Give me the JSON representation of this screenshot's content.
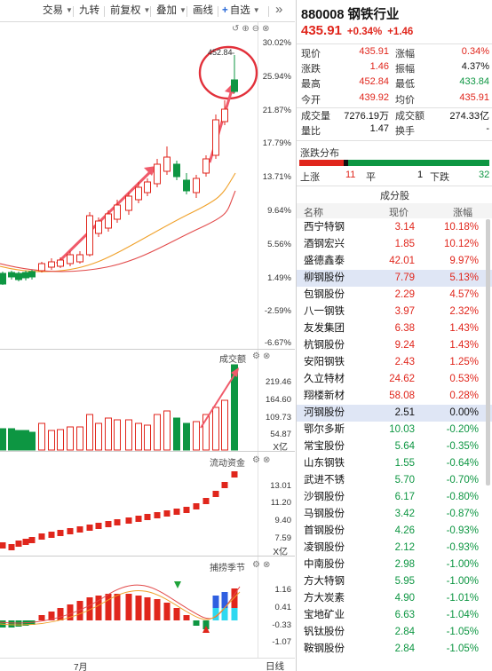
{
  "toolbar": {
    "items": [
      "交易",
      "九转",
      "前复权",
      "叠加",
      "画线",
      "自选"
    ],
    "more": "»"
  },
  "kline": {
    "axis": [
      "30.02%",
      "25.94%",
      "21.87%",
      "17.79%",
      "13.71%",
      "9.64%",
      "5.56%",
      "1.49%",
      "-2.59%",
      "-6.67%"
    ],
    "high_label": "452.84"
  },
  "volume": {
    "title": "成交额",
    "axis": [
      "219.46",
      "164.60",
      "109.73",
      "54.87"
    ],
    "unit": "X亿"
  },
  "flow": {
    "title": "流动资金",
    "axis": [
      "13.01",
      "11.20",
      "9.40",
      "7.59"
    ],
    "unit": "X亿"
  },
  "season": {
    "title": "捕捞季节",
    "axis": [
      "1.16",
      "0.41",
      "-0.33",
      "-1.07"
    ]
  },
  "bottom": {
    "date": "7月",
    "period": "日线"
  },
  "quote": {
    "code": "880008",
    "name": "钢铁行业",
    "price": "435.91",
    "change_pct": "+0.34%",
    "change": "+1.46",
    "rows": [
      {
        "k1": "现价",
        "v1": "435.91",
        "c1": "red",
        "k2": "涨幅",
        "v2": "0.34%",
        "c2": "red"
      },
      {
        "k1": "涨跌",
        "v1": "1.46",
        "c1": "red",
        "k2": "振幅",
        "v2": "4.37%",
        "c2": "black"
      },
      {
        "k1": "最高",
        "v1": "452.84",
        "c1": "red",
        "k2": "最低",
        "v2": "433.84",
        "c2": "green"
      },
      {
        "k1": "今开",
        "v1": "439.92",
        "c1": "red",
        "k2": "均价",
        "v2": "435.91",
        "c2": "red"
      },
      {
        "k1": "成交量",
        "v1": "7276.19万",
        "c1": "black",
        "k2": "成交额",
        "v2": "274.33亿",
        "c2": "black"
      },
      {
        "k1": "量比",
        "v1": "1.47",
        "c1": "black",
        "k2": "换手",
        "v2": "-",
        "c2": "black"
      }
    ]
  },
  "distribution": {
    "title": "涨跌分布",
    "up_label": "上涨",
    "up": "11",
    "flat_label": "平",
    "flat": "1",
    "down_label": "下跌",
    "down": "32"
  },
  "components": {
    "title": "成分股",
    "head_name": "名称",
    "head_price": "现价",
    "head_pct": "涨幅",
    "rows": [
      {
        "name": "西宁特钢",
        "price": "3.14",
        "pct": "10.18%",
        "color": "red"
      },
      {
        "name": "酒钢宏兴",
        "price": "1.85",
        "pct": "10.12%",
        "color": "red"
      },
      {
        "name": "盛德鑫泰",
        "price": "42.01",
        "pct": "9.97%",
        "color": "red"
      },
      {
        "name": "柳钢股份",
        "price": "7.79",
        "pct": "5.13%",
        "color": "red",
        "selected": true
      },
      {
        "name": "包钢股份",
        "price": "2.29",
        "pct": "4.57%",
        "color": "red"
      },
      {
        "name": "八一钢铁",
        "price": "3.97",
        "pct": "2.32%",
        "color": "red"
      },
      {
        "name": "友发集团",
        "price": "6.38",
        "pct": "1.43%",
        "color": "red"
      },
      {
        "name": "杭钢股份",
        "price": "9.24",
        "pct": "1.43%",
        "color": "red"
      },
      {
        "name": "安阳钢铁",
        "price": "2.43",
        "pct": "1.25%",
        "color": "red"
      },
      {
        "name": "久立特材",
        "price": "24.62",
        "pct": "0.53%",
        "color": "red"
      },
      {
        "name": "翔楼新材",
        "price": "58.08",
        "pct": "0.28%",
        "color": "red"
      },
      {
        "name": "河钢股份",
        "price": "2.51",
        "pct": "0.00%",
        "color": "black",
        "selected": true
      },
      {
        "name": "鄂尔多斯",
        "price": "10.03",
        "pct": "-0.20%",
        "color": "green"
      },
      {
        "name": "常宝股份",
        "price": "5.64",
        "pct": "-0.35%",
        "color": "green"
      },
      {
        "name": "山东钢铁",
        "price": "1.55",
        "pct": "-0.64%",
        "color": "green"
      },
      {
        "name": "武进不锈",
        "price": "5.70",
        "pct": "-0.70%",
        "color": "green"
      },
      {
        "name": "沙钢股份",
        "price": "6.17",
        "pct": "-0.80%",
        "color": "green"
      },
      {
        "name": "马钢股份",
        "price": "3.42",
        "pct": "-0.87%",
        "color": "green"
      },
      {
        "name": "首钢股份",
        "price": "4.26",
        "pct": "-0.93%",
        "color": "green"
      },
      {
        "name": "凌钢股份",
        "price": "2.12",
        "pct": "-0.93%",
        "color": "green"
      },
      {
        "name": "中南股份",
        "price": "2.98",
        "pct": "-1.00%",
        "color": "green"
      },
      {
        "name": "方大特钢",
        "price": "5.95",
        "pct": "-1.00%",
        "color": "green"
      },
      {
        "name": "方大炭素",
        "price": "4.90",
        "pct": "-1.01%",
        "color": "green"
      },
      {
        "name": "宝地矿业",
        "price": "6.63",
        "pct": "-1.04%",
        "color": "green"
      },
      {
        "name": "钒钛股份",
        "price": "2.84",
        "pct": "-1.05%",
        "color": "green"
      },
      {
        "name": "鞍钢股份",
        "price": "2.84",
        "pct": "-1.05%",
        "color": "green"
      }
    ]
  },
  "colors": {
    "up": "#e0261c",
    "down": "#0d9642",
    "ma1": "#f0a12a",
    "ma2": "#e24a4a",
    "annot": "#f05a6a"
  }
}
